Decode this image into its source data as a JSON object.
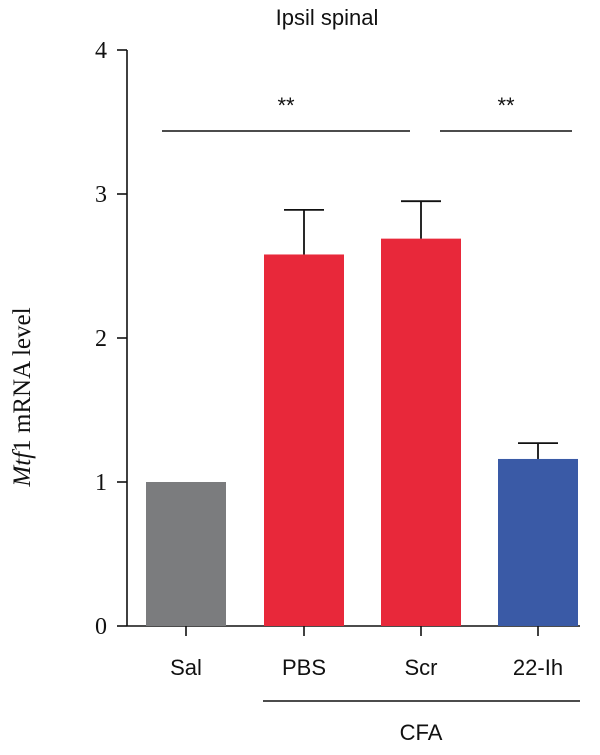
{
  "chart_data": {
    "type": "bar",
    "title": "Ipsil spinal",
    "ylabel_italic": "Mtf",
    "ylabel_rest": "1 mRNA level",
    "ylim": [
      0,
      4
    ],
    "yticks": [
      0,
      1,
      2,
      3,
      4
    ],
    "categories": [
      "Sal",
      "PBS",
      "Scr",
      "22-Ih"
    ],
    "values": [
      1.0,
      2.58,
      2.69,
      1.16
    ],
    "errors": [
      0,
      0.31,
      0.26,
      0.11
    ],
    "colors": [
      "#7b7c7e",
      "#e8283a",
      "#e8283a",
      "#3a5aa6"
    ],
    "group_label": "CFA",
    "group_categories": [
      "PBS",
      "Scr",
      "22-Ih"
    ],
    "significance": [
      {
        "from": "Sal",
        "to": "Scr",
        "label": "**"
      },
      {
        "from": "Scr",
        "to": "22-Ih",
        "label": "**"
      }
    ],
    "grid": false
  }
}
